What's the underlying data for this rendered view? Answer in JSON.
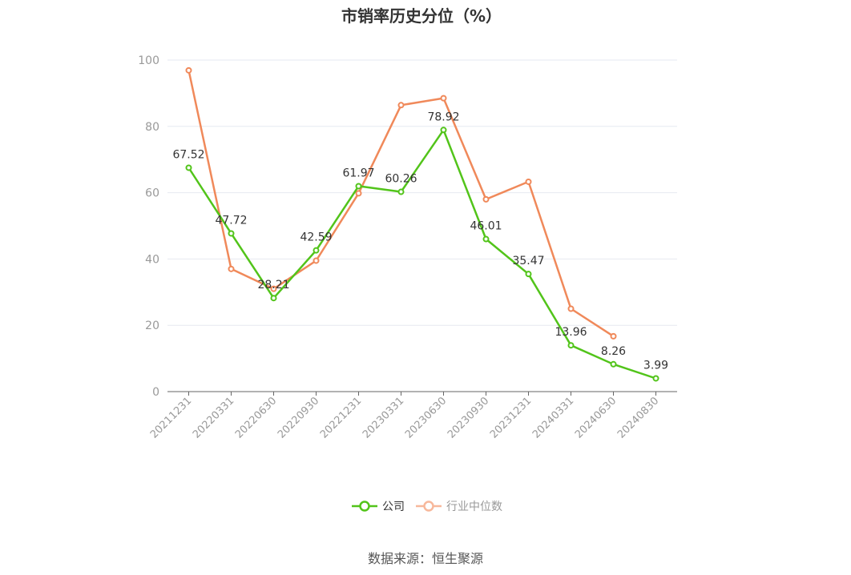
{
  "chart_data": {
    "type": "line",
    "title": "市销率历史分位（%）",
    "categories": [
      "20211231",
      "20220331",
      "20220630",
      "20220930",
      "20221231",
      "20230331",
      "20230630",
      "20230930",
      "20231231",
      "20240331",
      "20240630",
      "20240830"
    ],
    "ylim": [
      0,
      100
    ],
    "yticks": [
      0,
      20,
      40,
      60,
      80,
      100
    ],
    "grid": true,
    "legend_position": "bottom",
    "series": [
      {
        "name": "公司",
        "color": "#52c41a",
        "values": [
          67.52,
          47.72,
          28.21,
          42.59,
          61.97,
          60.26,
          78.92,
          46.01,
          35.47,
          13.96,
          8.26,
          3.99
        ],
        "labels": [
          "67.52",
          "47.72",
          "28.21",
          "42.59",
          "61.97",
          "60.26",
          "78.92",
          "46.01",
          "35.47",
          "13.96",
          "8.26",
          "3.99"
        ]
      },
      {
        "name": "行业中位数",
        "color": "#f0895a",
        "values": [
          96.9,
          37.0,
          31.0,
          39.5,
          59.8,
          86.4,
          88.5,
          58.0,
          63.3,
          25.0,
          16.7,
          null
        ]
      }
    ]
  },
  "source": "数据来源：恒生聚源"
}
